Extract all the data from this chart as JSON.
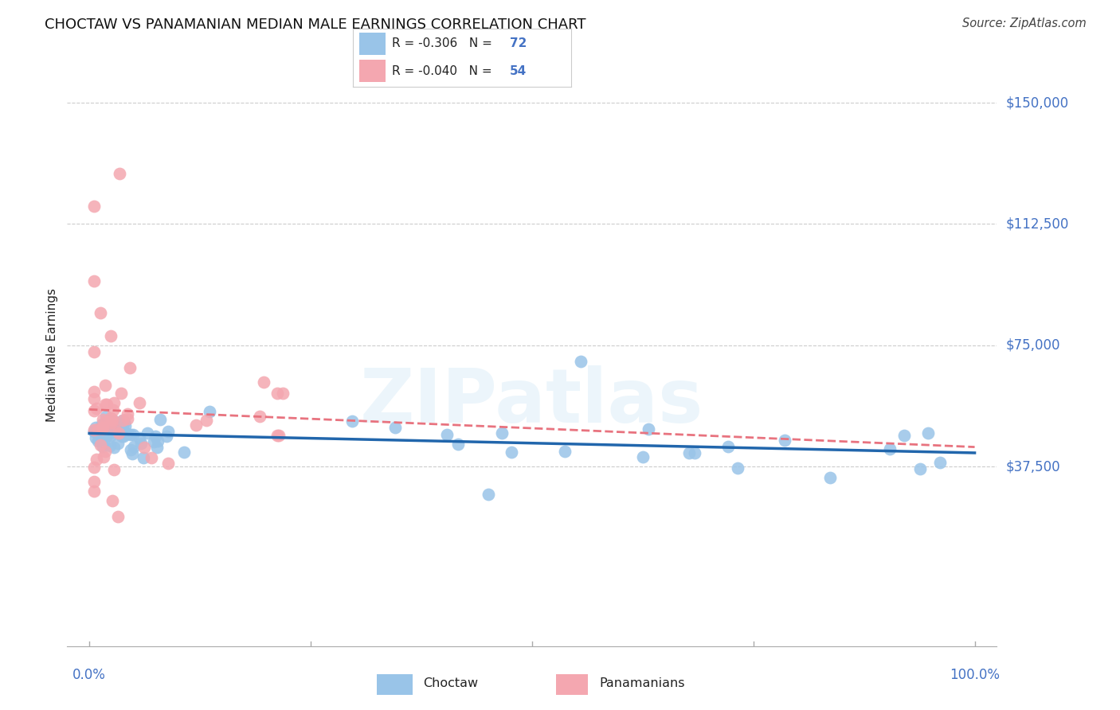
{
  "title": "CHOCTAW VS PANAMANIAN MEDIAN MALE EARNINGS CORRELATION CHART",
  "source": "Source: ZipAtlas.com",
  "ylabel": "Median Male Earnings",
  "y_ticks": [
    37500,
    75000,
    112500,
    150000
  ],
  "y_tick_labels": [
    "$37,500",
    "$75,000",
    "$112,500",
    "$150,000"
  ],
  "ylim": [
    -18000,
    162000
  ],
  "xlim": [
    -0.025,
    1.025
  ],
  "legend_r_choctaw": "-0.306",
  "legend_n_choctaw": "72",
  "legend_r_panamanian": "-0.040",
  "legend_n_panamanian": "54",
  "choctaw_color": "#99C4E8",
  "panamanian_color": "#F4A7B0",
  "choctaw_line_color": "#2166AC",
  "panamanian_line_color": "#E8737F",
  "background_color": "#ffffff",
  "watermark_text": "ZIPatlas",
  "title_fontsize": 13,
  "axis_label_color": "#4472C4",
  "text_color": "#222222"
}
